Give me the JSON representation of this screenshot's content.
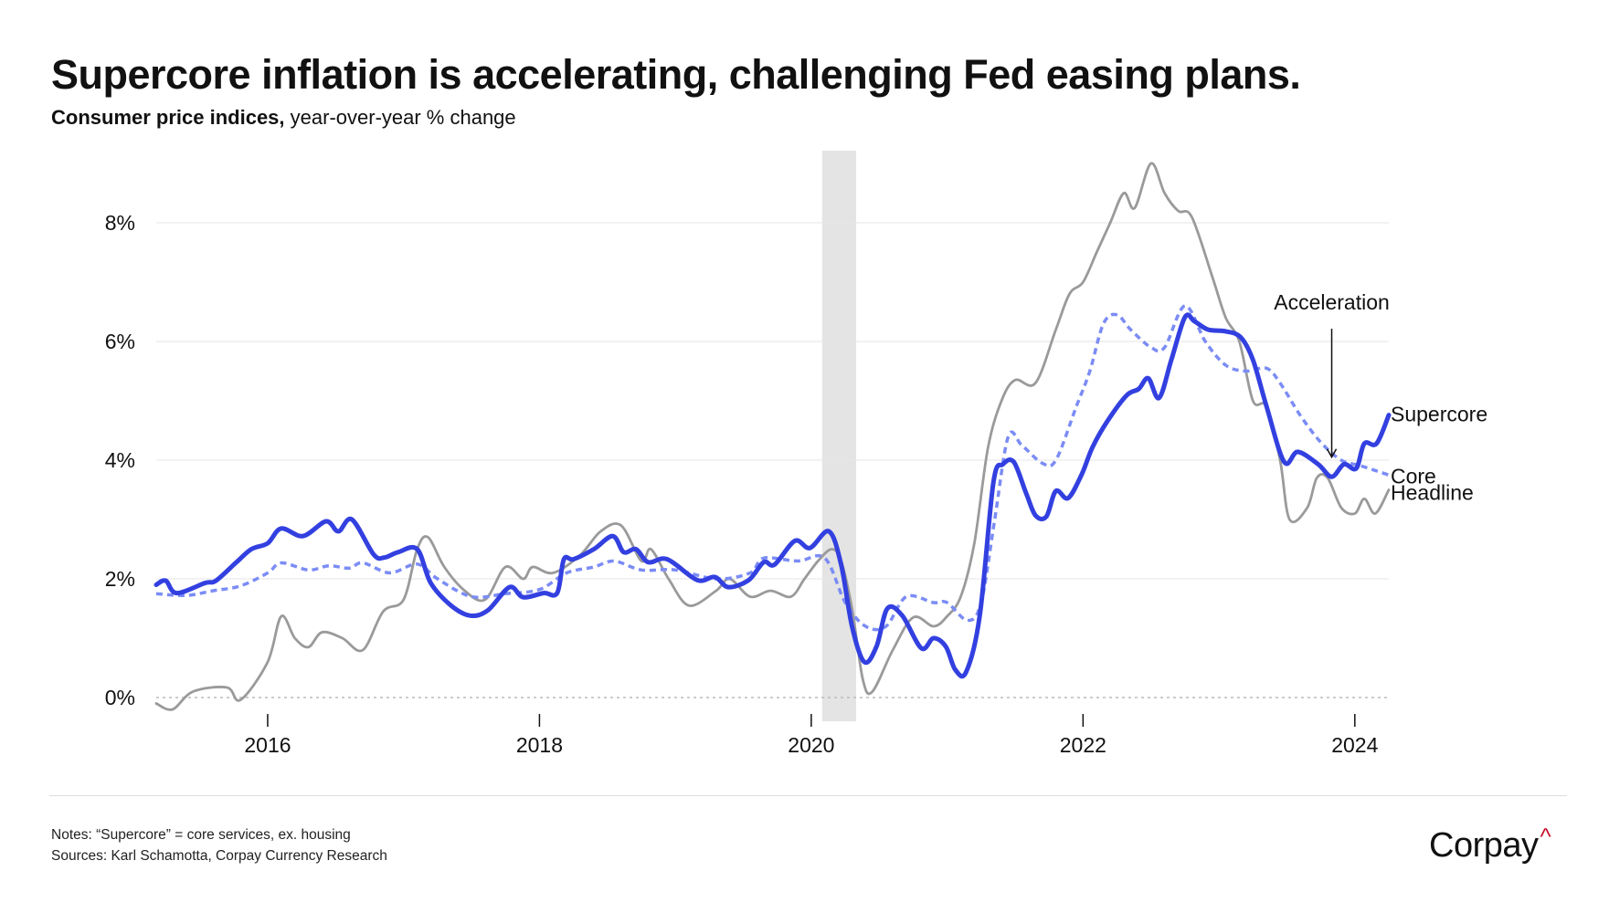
{
  "header": {
    "title": "Supercore inflation is accelerating, challenging Fed easing plans.",
    "subtitle_bold": "Consumer price indices,",
    "subtitle_rest": " year-over-year % change"
  },
  "footer": {
    "notes": "Notes: “Supercore” = core services, ex. housing",
    "sources": "Sources: Karl Schamotta, Corpay Currency Research",
    "logo": "Corpay",
    "logo_mark": "^"
  },
  "chart_data": {
    "type": "line",
    "title": "Supercore inflation is accelerating, challenging Fed easing plans.",
    "subtitle": "Consumer price indices, year-over-year % change",
    "xlim": [
      2015.18,
      2024.25
    ],
    "ylim": [
      -0.4,
      9.2
    ],
    "x_ticks": [
      2016,
      2018,
      2020,
      2022,
      2024
    ],
    "x_tick_labels": [
      "2016",
      "2018",
      "2020",
      "2022",
      "2024"
    ],
    "y_ticks": [
      0,
      2,
      4,
      6,
      8
    ],
    "y_tick_labels": [
      "0%",
      "2%",
      "4%",
      "6%",
      "8%"
    ],
    "grid": "horizontal",
    "shaded_period": [
      2020.08,
      2020.33
    ],
    "annotation": {
      "text": "Acceleration",
      "x": 2023.83,
      "y_from": 6.2,
      "y_to": 4.05
    },
    "series": [
      {
        "name": "Supercore",
        "color": "#3340e0",
        "style": "solid",
        "x": [
          2015.18,
          2015.25,
          2015.33,
          2015.54,
          2015.62,
          2015.77,
          2015.88,
          2016.0,
          2016.1,
          2016.26,
          2016.43,
          2016.52,
          2016.62,
          2016.78,
          2016.86,
          2016.96,
          2017.1,
          2017.2,
          2017.35,
          2017.49,
          2017.62,
          2017.78,
          2017.88,
          2018.03,
          2018.13,
          2018.18,
          2018.25,
          2018.4,
          2018.54,
          2018.62,
          2018.71,
          2018.8,
          2018.94,
          2019.16,
          2019.29,
          2019.39,
          2019.54,
          2019.65,
          2019.73,
          2019.88,
          2019.99,
          2020.13,
          2020.22,
          2020.3,
          2020.39,
          2020.48,
          2020.56,
          2020.67,
          2020.81,
          2020.9,
          2020.99,
          2021.06,
          2021.14,
          2021.24,
          2021.34,
          2021.41,
          2021.49,
          2021.58,
          2021.65,
          2021.73,
          2021.8,
          2021.89,
          2021.99,
          2022.07,
          2022.18,
          2022.32,
          2022.41,
          2022.48,
          2022.56,
          2022.65,
          2022.75,
          2022.82,
          2022.92,
          2023.05,
          2023.16,
          2023.25,
          2023.35,
          2023.48,
          2023.58,
          2023.73,
          2023.83,
          2023.92,
          2024.01,
          2024.07,
          2024.16,
          2024.25
        ],
        "values": [
          1.9,
          1.97,
          1.76,
          1.93,
          1.97,
          2.28,
          2.5,
          2.6,
          2.85,
          2.72,
          2.97,
          2.8,
          3.0,
          2.41,
          2.36,
          2.45,
          2.5,
          1.93,
          1.55,
          1.38,
          1.47,
          1.86,
          1.69,
          1.76,
          1.76,
          2.33,
          2.33,
          2.5,
          2.72,
          2.45,
          2.5,
          2.28,
          2.33,
          1.98,
          2.03,
          1.86,
          1.98,
          2.28,
          2.24,
          2.64,
          2.52,
          2.8,
          2.24,
          1.2,
          0.6,
          0.86,
          1.5,
          1.38,
          0.83,
          1.0,
          0.86,
          0.47,
          0.43,
          1.38,
          3.62,
          3.93,
          3.97,
          3.45,
          3.07,
          3.05,
          3.48,
          3.36,
          3.76,
          4.22,
          4.66,
          5.09,
          5.2,
          5.38,
          5.05,
          5.69,
          6.41,
          6.34,
          6.2,
          6.17,
          6.07,
          5.69,
          4.91,
          3.97,
          4.14,
          3.93,
          3.72,
          3.93,
          3.86,
          4.28,
          4.28,
          4.76
        ]
      },
      {
        "name": "Core",
        "color": "#7b8cf5",
        "style": "dashed",
        "x": [
          2015.18,
          2015.4,
          2015.6,
          2015.8,
          2016.0,
          2016.1,
          2016.3,
          2016.45,
          2016.6,
          2016.7,
          2016.9,
          2017.1,
          2017.25,
          2017.5,
          2017.75,
          2018.0,
          2018.2,
          2018.4,
          2018.55,
          2018.75,
          2019.0,
          2019.3,
          2019.55,
          2019.65,
          2019.9,
          2020.1,
          2020.25,
          2020.4,
          2020.55,
          2020.7,
          2020.9,
          2021.0,
          2021.15,
          2021.25,
          2021.35,
          2021.45,
          2021.55,
          2021.7,
          2021.8,
          2021.95,
          2022.05,
          2022.15,
          2022.25,
          2022.35,
          2022.5,
          2022.6,
          2022.75,
          2022.9,
          2023.05,
          2023.2,
          2023.35,
          2023.45,
          2023.6,
          2023.75,
          2023.9,
          2024.05,
          2024.25
        ],
        "values": [
          1.75,
          1.72,
          1.8,
          1.88,
          2.1,
          2.27,
          2.15,
          2.22,
          2.18,
          2.27,
          2.1,
          2.25,
          2.0,
          1.7,
          1.75,
          1.82,
          2.1,
          2.2,
          2.3,
          2.15,
          2.15,
          2.0,
          2.1,
          2.35,
          2.3,
          2.35,
          1.6,
          1.2,
          1.2,
          1.7,
          1.6,
          1.6,
          1.3,
          1.6,
          3.0,
          4.4,
          4.25,
          3.95,
          4.0,
          4.9,
          5.5,
          6.3,
          6.45,
          6.2,
          5.9,
          5.9,
          6.6,
          6.0,
          5.6,
          5.5,
          5.55,
          5.3,
          4.75,
          4.3,
          4.0,
          3.9,
          3.75
        ]
      },
      {
        "name": "Headline",
        "color": "#9a9a9a",
        "style": "solid",
        "x": [
          2015.18,
          2015.3,
          2015.45,
          2015.7,
          2015.8,
          2016.0,
          2016.1,
          2016.2,
          2016.3,
          2016.4,
          2016.55,
          2016.7,
          2016.85,
          2017.0,
          2017.1,
          2017.18,
          2017.3,
          2017.45,
          2017.6,
          2017.75,
          2017.88,
          2017.95,
          2018.1,
          2018.3,
          2018.45,
          2018.6,
          2018.75,
          2018.82,
          2018.95,
          2019.1,
          2019.3,
          2019.4,
          2019.55,
          2019.7,
          2019.85,
          2019.95,
          2020.05,
          2020.15,
          2020.22,
          2020.3,
          2020.38,
          2020.45,
          2020.6,
          2020.75,
          2020.9,
          2021.0,
          2021.1,
          2021.2,
          2021.3,
          2021.4,
          2021.5,
          2021.65,
          2021.8,
          2021.9,
          2022.0,
          2022.1,
          2022.2,
          2022.3,
          2022.38,
          2022.5,
          2022.6,
          2022.7,
          2022.8,
          2022.95,
          2023.05,
          2023.15,
          2023.25,
          2023.35,
          2023.45,
          2023.52,
          2023.65,
          2023.72,
          2023.8,
          2023.9,
          2024.0,
          2024.07,
          2024.15,
          2024.25
        ],
        "values": [
          -0.1,
          -0.2,
          0.1,
          0.17,
          -0.04,
          0.6,
          1.37,
          1.0,
          0.85,
          1.1,
          1.0,
          0.8,
          1.45,
          1.65,
          2.5,
          2.7,
          2.2,
          1.8,
          1.65,
          2.2,
          2.0,
          2.2,
          2.1,
          2.4,
          2.8,
          2.9,
          2.3,
          2.5,
          2.0,
          1.55,
          1.8,
          2.0,
          1.7,
          1.8,
          1.7,
          2.0,
          2.3,
          2.5,
          2.3,
          1.5,
          0.3,
          0.1,
          0.8,
          1.35,
          1.2,
          1.37,
          1.7,
          2.6,
          4.2,
          5.0,
          5.35,
          5.3,
          6.2,
          6.8,
          7.0,
          7.5,
          8.0,
          8.5,
          8.25,
          9.0,
          8.5,
          8.2,
          8.1,
          7.1,
          6.4,
          6.0,
          5.0,
          4.9,
          4.0,
          3.0,
          3.2,
          3.7,
          3.7,
          3.2,
          3.1,
          3.35,
          3.1,
          3.5
        ]
      }
    ]
  }
}
